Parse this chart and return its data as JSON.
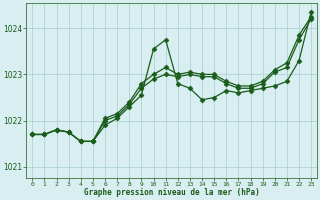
{
  "title": "Graphe pression niveau de la mer (hPa)",
  "background_color": "#d8eef0",
  "grid_color": "#a8cdd0",
  "line_color": "#1a5c1a",
  "xlim": [
    -0.5,
    23.5
  ],
  "ylim": [
    1020.75,
    1024.55
  ],
  "yticks": [
    1021,
    1022,
    1023,
    1024
  ],
  "xticks": [
    0,
    1,
    2,
    3,
    4,
    5,
    6,
    7,
    8,
    9,
    10,
    11,
    12,
    13,
    14,
    15,
    16,
    17,
    18,
    19,
    20,
    21,
    22,
    23
  ],
  "line1_x": [
    0,
    1,
    2,
    3,
    4,
    5,
    6,
    7,
    8,
    9,
    10,
    11,
    12,
    13,
    14,
    15,
    16,
    17,
    18,
    19,
    20,
    21,
    22,
    23
  ],
  "line1_y": [
    1021.7,
    1021.7,
    1021.8,
    1021.75,
    1021.55,
    1021.55,
    1021.9,
    1022.05,
    1022.3,
    1022.55,
    1023.55,
    1023.75,
    1022.8,
    1022.7,
    1022.45,
    1022.5,
    1022.65,
    1022.6,
    1022.65,
    1022.7,
    1022.75,
    1022.85,
    1023.3,
    1024.35
  ],
  "line2_x": [
    0,
    1,
    2,
    3,
    4,
    5,
    6,
    7,
    8,
    9,
    10,
    11,
    12,
    13,
    14,
    15,
    16,
    17,
    18,
    19,
    20,
    21,
    22,
    23
  ],
  "line2_y": [
    1021.7,
    1021.7,
    1021.8,
    1021.75,
    1021.55,
    1021.55,
    1022.05,
    1022.15,
    1022.4,
    1022.8,
    1023.0,
    1023.15,
    1023.0,
    1023.05,
    1023.0,
    1023.0,
    1022.85,
    1022.75,
    1022.75,
    1022.85,
    1023.1,
    1023.25,
    1023.85,
    1024.25
  ],
  "line3_x": [
    0,
    1,
    2,
    3,
    4,
    5,
    6,
    7,
    8,
    9,
    10,
    11,
    12,
    13,
    14,
    15,
    16,
    17,
    18,
    19,
    20,
    21,
    22,
    23
  ],
  "line3_y": [
    1021.7,
    1021.7,
    1021.8,
    1021.75,
    1021.55,
    1021.55,
    1022.0,
    1022.1,
    1022.35,
    1022.7,
    1022.9,
    1023.0,
    1022.95,
    1023.0,
    1022.95,
    1022.95,
    1022.8,
    1022.7,
    1022.7,
    1022.8,
    1023.05,
    1023.15,
    1023.75,
    1024.2
  ],
  "marker_size": 2.5,
  "line_width": 0.9
}
